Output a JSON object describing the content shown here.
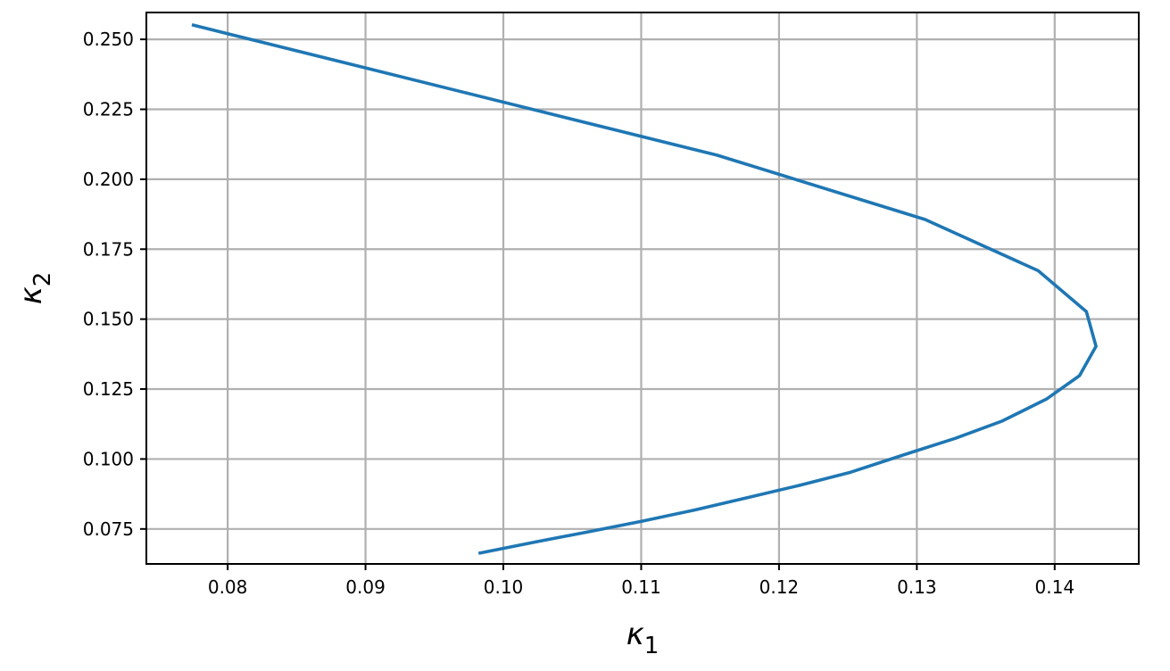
{
  "chart_data": {
    "type": "line",
    "title": "",
    "xlabel": "κ1",
    "ylabel": "κ2",
    "xlabel_parts": {
      "base": "κ",
      "sub": "1"
    },
    "ylabel_parts": {
      "base": "κ",
      "sub": "2"
    },
    "xlim": [
      0.0741,
      0.1461
    ],
    "ylim": [
      0.0625,
      0.2596
    ],
    "xticks": [
      0.08,
      0.09,
      0.1,
      0.11,
      0.12,
      0.13,
      0.14
    ],
    "xtick_labels": [
      "0.08",
      "0.09",
      "0.10",
      "0.11",
      "0.12",
      "0.13",
      "0.14"
    ],
    "yticks": [
      0.075,
      0.1,
      0.125,
      0.15,
      0.175,
      0.2,
      0.225,
      0.25
    ],
    "ytick_labels": [
      "0.075",
      "0.100",
      "0.125",
      "0.150",
      "0.175",
      "0.200",
      "0.225",
      "0.250"
    ],
    "grid": true,
    "series": [
      {
        "color": "#1f77b4",
        "x": [
          0.0774,
          0.1155,
          0.1306,
          0.1388,
          0.1423,
          0.143,
          0.1418,
          0.1394,
          0.1362,
          0.1328,
          0.129,
          0.1252,
          0.1215,
          0.1177,
          0.1139,
          0.1101,
          0.1063,
          0.1025,
          0.0982
        ],
        "y": [
          0.2552,
          0.2086,
          0.1856,
          0.1673,
          0.1527,
          0.1403,
          0.1298,
          0.1214,
          0.1136,
          0.1074,
          0.1014,
          0.0953,
          0.0906,
          0.0862,
          0.0818,
          0.0778,
          0.0741,
          0.0705,
          0.0663
        ]
      }
    ]
  }
}
